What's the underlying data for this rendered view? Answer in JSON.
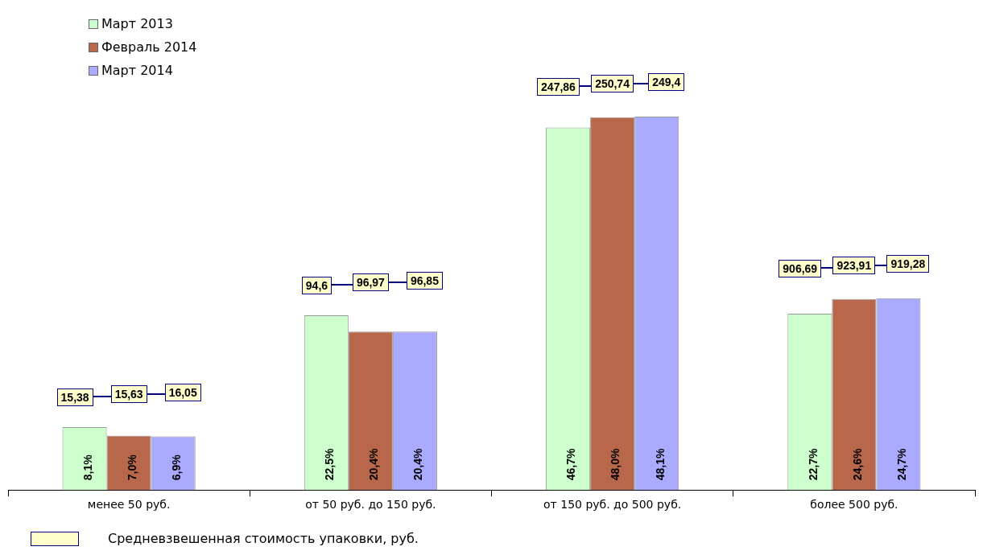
{
  "chart_data": {
    "type": "bar",
    "categories": [
      "менее 50 руб.",
      "от 50 руб. до 150 руб.",
      "от 150 руб. до 500 руб.",
      "более 500 руб."
    ],
    "series": [
      {
        "name": "Март 2013",
        "color": "#ccffcc",
        "values": [
          8.1,
          22.5,
          46.7,
          22.7
        ],
        "value_labels": [
          "8,1%",
          "22,5%",
          "46,7%",
          "22,7%"
        ]
      },
      {
        "name": "Февраль 2014",
        "color": "#b8674a",
        "values": [
          7.0,
          20.4,
          48.0,
          24.6
        ],
        "value_labels": [
          "7,0%",
          "20,4%",
          "48,0%",
          "24,6%"
        ]
      },
      {
        "name": "Март 2014",
        "color": "#aaaaff",
        "values": [
          6.9,
          20.4,
          48.1,
          24.7
        ],
        "value_labels": [
          "6,9%",
          "20,4%",
          "48,1%",
          "24,7%"
        ]
      }
    ],
    "annotations": [
      "15,38",
      "15,63",
      "16,05",
      "94,6",
      "96,97",
      "96,85",
      "247,86",
      "250,74",
      "249,4",
      "906,69",
      "923,91",
      "919,28",
      "Средневзвешенная стоимость упаковки, руб."
    ],
    "tick_labels": "x",
    "legend": "top left"
  }
}
